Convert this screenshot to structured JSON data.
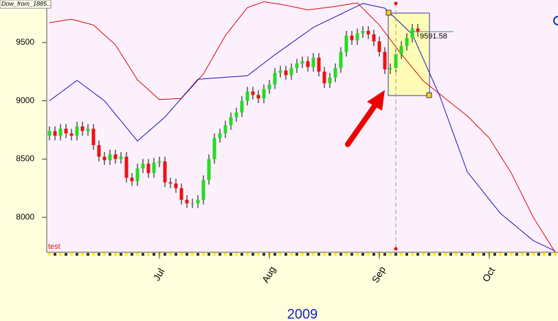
{
  "chart_data": {
    "type": "candlestick",
    "title": "Dow_from_1885...",
    "series_label": "test",
    "year_label": "2009",
    "cursor_label": "9591.58",
    "categories": [
      null,
      null,
      null,
      null,
      null,
      null,
      null,
      null,
      null,
      null,
      null,
      null,
      null,
      null,
      null,
      null,
      null,
      null,
      null,
      null,
      "Jul",
      null,
      null,
      null,
      null,
      null,
      null,
      null,
      null,
      null,
      null,
      null,
      null,
      null,
      null,
      null,
      null,
      null,
      null,
      null,
      "Aug",
      null,
      null,
      null,
      null,
      null,
      null,
      null,
      null,
      null,
      null,
      null,
      null,
      null,
      null,
      null,
      null,
      null,
      null,
      null,
      "Sep",
      null,
      null,
      null,
      null,
      null,
      null,
      null,
      null,
      null,
      null,
      null,
      null,
      null,
      null,
      null,
      null,
      null,
      null,
      null,
      "Oct",
      null,
      null,
      null,
      null,
      null,
      null,
      null,
      null,
      null,
      null,
      null,
      null
    ],
    "candles": {
      "up_color": "#22dd22",
      "down_color": "#ee1111",
      "open": [
        8700,
        8740,
        8700,
        8760,
        8720,
        8700,
        8780,
        8740,
        8760,
        8620,
        8520,
        8490,
        8540,
        8500,
        8520,
        8340,
        8310,
        8420,
        8460,
        8380,
        8470,
        8480,
        8300,
        8290,
        8250,
        8150,
        8120,
        8120,
        8150,
        8320,
        8500,
        8680,
        8720,
        8790,
        8860,
        8900,
        9000,
        9080,
        9050,
        9020,
        9100,
        9140,
        9240,
        9260,
        9220,
        9280,
        9320,
        9340,
        9290,
        9370,
        9250,
        9150,
        9200,
        9280,
        9420,
        9560,
        9520,
        9580,
        9600,
        9570,
        9510,
        9420,
        9270,
        9280,
        9400,
        9470,
        9540,
        9620,
        null,
        null,
        null,
        null,
        null,
        null,
        null,
        null,
        null,
        null,
        null,
        null,
        null,
        null,
        null,
        null,
        null,
        null,
        null,
        null,
        null,
        null,
        null,
        null,
        null
      ],
      "high": [
        8780,
        8780,
        8800,
        8800,
        8760,
        8820,
        8820,
        8800,
        8800,
        8660,
        8560,
        8580,
        8580,
        8560,
        8560,
        8380,
        8460,
        8500,
        8500,
        8510,
        8520,
        8520,
        8340,
        8330,
        8290,
        8190,
        8160,
        8190,
        8360,
        8540,
        8720,
        8760,
        8830,
        8900,
        8940,
        9040,
        9120,
        9120,
        9090,
        9140,
        9180,
        9280,
        9300,
        9300,
        9320,
        9360,
        9380,
        9380,
        9410,
        9410,
        9290,
        9240,
        9320,
        9460,
        9600,
        9600,
        9620,
        9640,
        9640,
        9610,
        9550,
        9460,
        9320,
        9440,
        9510,
        9580,
        9660,
        9660,
        null,
        null,
        null,
        null,
        null,
        null,
        null,
        null,
        null,
        null,
        null,
        null,
        null,
        null,
        null,
        null,
        null,
        null,
        null,
        null,
        null,
        null,
        null,
        null,
        null
      ],
      "low": [
        8660,
        8660,
        8660,
        8680,
        8660,
        8660,
        8700,
        8700,
        8580,
        8480,
        8450,
        8450,
        8460,
        8460,
        8300,
        8270,
        8270,
        8380,
        8340,
        8340,
        8430,
        8260,
        8250,
        8210,
        8110,
        8080,
        8080,
        8080,
        8110,
        8280,
        8460,
        8640,
        8680,
        8750,
        8820,
        8860,
        8960,
        9010,
        8980,
        8980,
        9060,
        9100,
        9200,
        9180,
        9180,
        9240,
        9280,
        9250,
        9250,
        9210,
        9110,
        9110,
        9160,
        9240,
        9380,
        9480,
        9480,
        9540,
        9530,
        9470,
        9380,
        9230,
        9230,
        9240,
        9360,
        9430,
        9500,
        9550,
        null,
        null,
        null,
        null,
        null,
        null,
        null,
        null,
        null,
        null,
        null,
        null,
        null,
        null,
        null,
        null,
        null,
        null,
        null,
        null,
        null,
        null,
        null,
        null,
        null
      ],
      "close": [
        8740,
        8700,
        8760,
        8720,
        8700,
        8780,
        8740,
        8760,
        8620,
        8520,
        8490,
        8540,
        8500,
        8520,
        8340,
        8310,
        8420,
        8460,
        8380,
        8470,
        8480,
        8300,
        8290,
        8250,
        8150,
        8120,
        8120,
        8150,
        8320,
        8500,
        8680,
        8720,
        8790,
        8860,
        8900,
        9000,
        9080,
        9050,
        9020,
        9100,
        9140,
        9240,
        9260,
        9220,
        9280,
        9320,
        9340,
        9290,
        9370,
        9250,
        9150,
        9200,
        9280,
        9420,
        9560,
        9520,
        9580,
        9600,
        9570,
        9510,
        9420,
        9270,
        9280,
        9400,
        9470,
        9540,
        9620,
        9590,
        null,
        null,
        null,
        null,
        null,
        null,
        null,
        null,
        null,
        null,
        null,
        null,
        null,
        null,
        null,
        null,
        null,
        null,
        null,
        null,
        null,
        null,
        null,
        null,
        null
      ]
    },
    "series": [
      {
        "color": "#dd0000",
        "values": [
          9670,
          9678,
          9685,
          9693,
          9700,
          9688,
          9675,
          9663,
          9650,
          9608,
          9565,
          9523,
          9480,
          9405,
          9330,
          9255,
          9180,
          9138,
          9095,
          9053,
          9010,
          9013,
          9015,
          9018,
          9020,
          9073,
          9125,
          9178,
          9230,
          9313,
          9395,
          9478,
          9560,
          9620,
          9680,
          9740,
          9800,
          9817,
          9833,
          9850,
          9843,
          9835,
          9828,
          9820,
          9810,
          9800,
          9790,
          9780,
          9786,
          9792,
          9798,
          9804,
          9810,
          9818,
          9825,
          9833,
          9840,
          9793,
          9745,
          9698,
          9650,
          9588,
          9525,
          9463,
          9400,
          9343,
          9285,
          9228,
          9170,
          9133,
          9095,
          9058,
          9020,
          8983,
          8945,
          8908,
          8870,
          8823,
          8775,
          8728,
          8680,
          8605,
          8530,
          8455,
          8380,
          8285,
          8190,
          8095,
          8000,
          7925,
          7850,
          7775,
          7700
        ]
      },
      {
        "color": "#1111bb",
        "values": [
          9000,
          9035,
          9070,
          9105,
          9140,
          9175,
          9140,
          9105,
          9070,
          9035,
          9000,
          8943,
          8885,
          8828,
          8770,
          8713,
          8655,
          8696,
          8737,
          8778,
          8819,
          8860,
          8914,
          8968,
          9023,
          9077,
          9131,
          9185,
          9188,
          9192,
          9195,
          9198,
          9202,
          9205,
          9208,
          9212,
          9215,
          9251,
          9287,
          9323,
          9359,
          9395,
          9429,
          9462,
          9496,
          9529,
          9563,
          9596,
          9630,
          9653,
          9676,
          9698,
          9721,
          9744,
          9767,
          9790,
          9812,
          9835,
          9825,
          9815,
          9805,
          9795,
          9750,
          9705,
          9660,
          9615,
          9570,
          9464,
          9358,
          9252,
          9146,
          9040,
          8910,
          8780,
          8650,
          8520,
          8390,
          8331,
          8272,
          8213,
          8153,
          8094,
          8035,
          7996,
          7957,
          7918,
          7878,
          7839,
          7800,
          7778,
          7755,
          7733,
          7710
        ]
      }
    ],
    "ylim": [
      7700,
      9865
    ],
    "yticks": [
      8000,
      8500,
      9000,
      9500
    ],
    "grid": false
  }
}
